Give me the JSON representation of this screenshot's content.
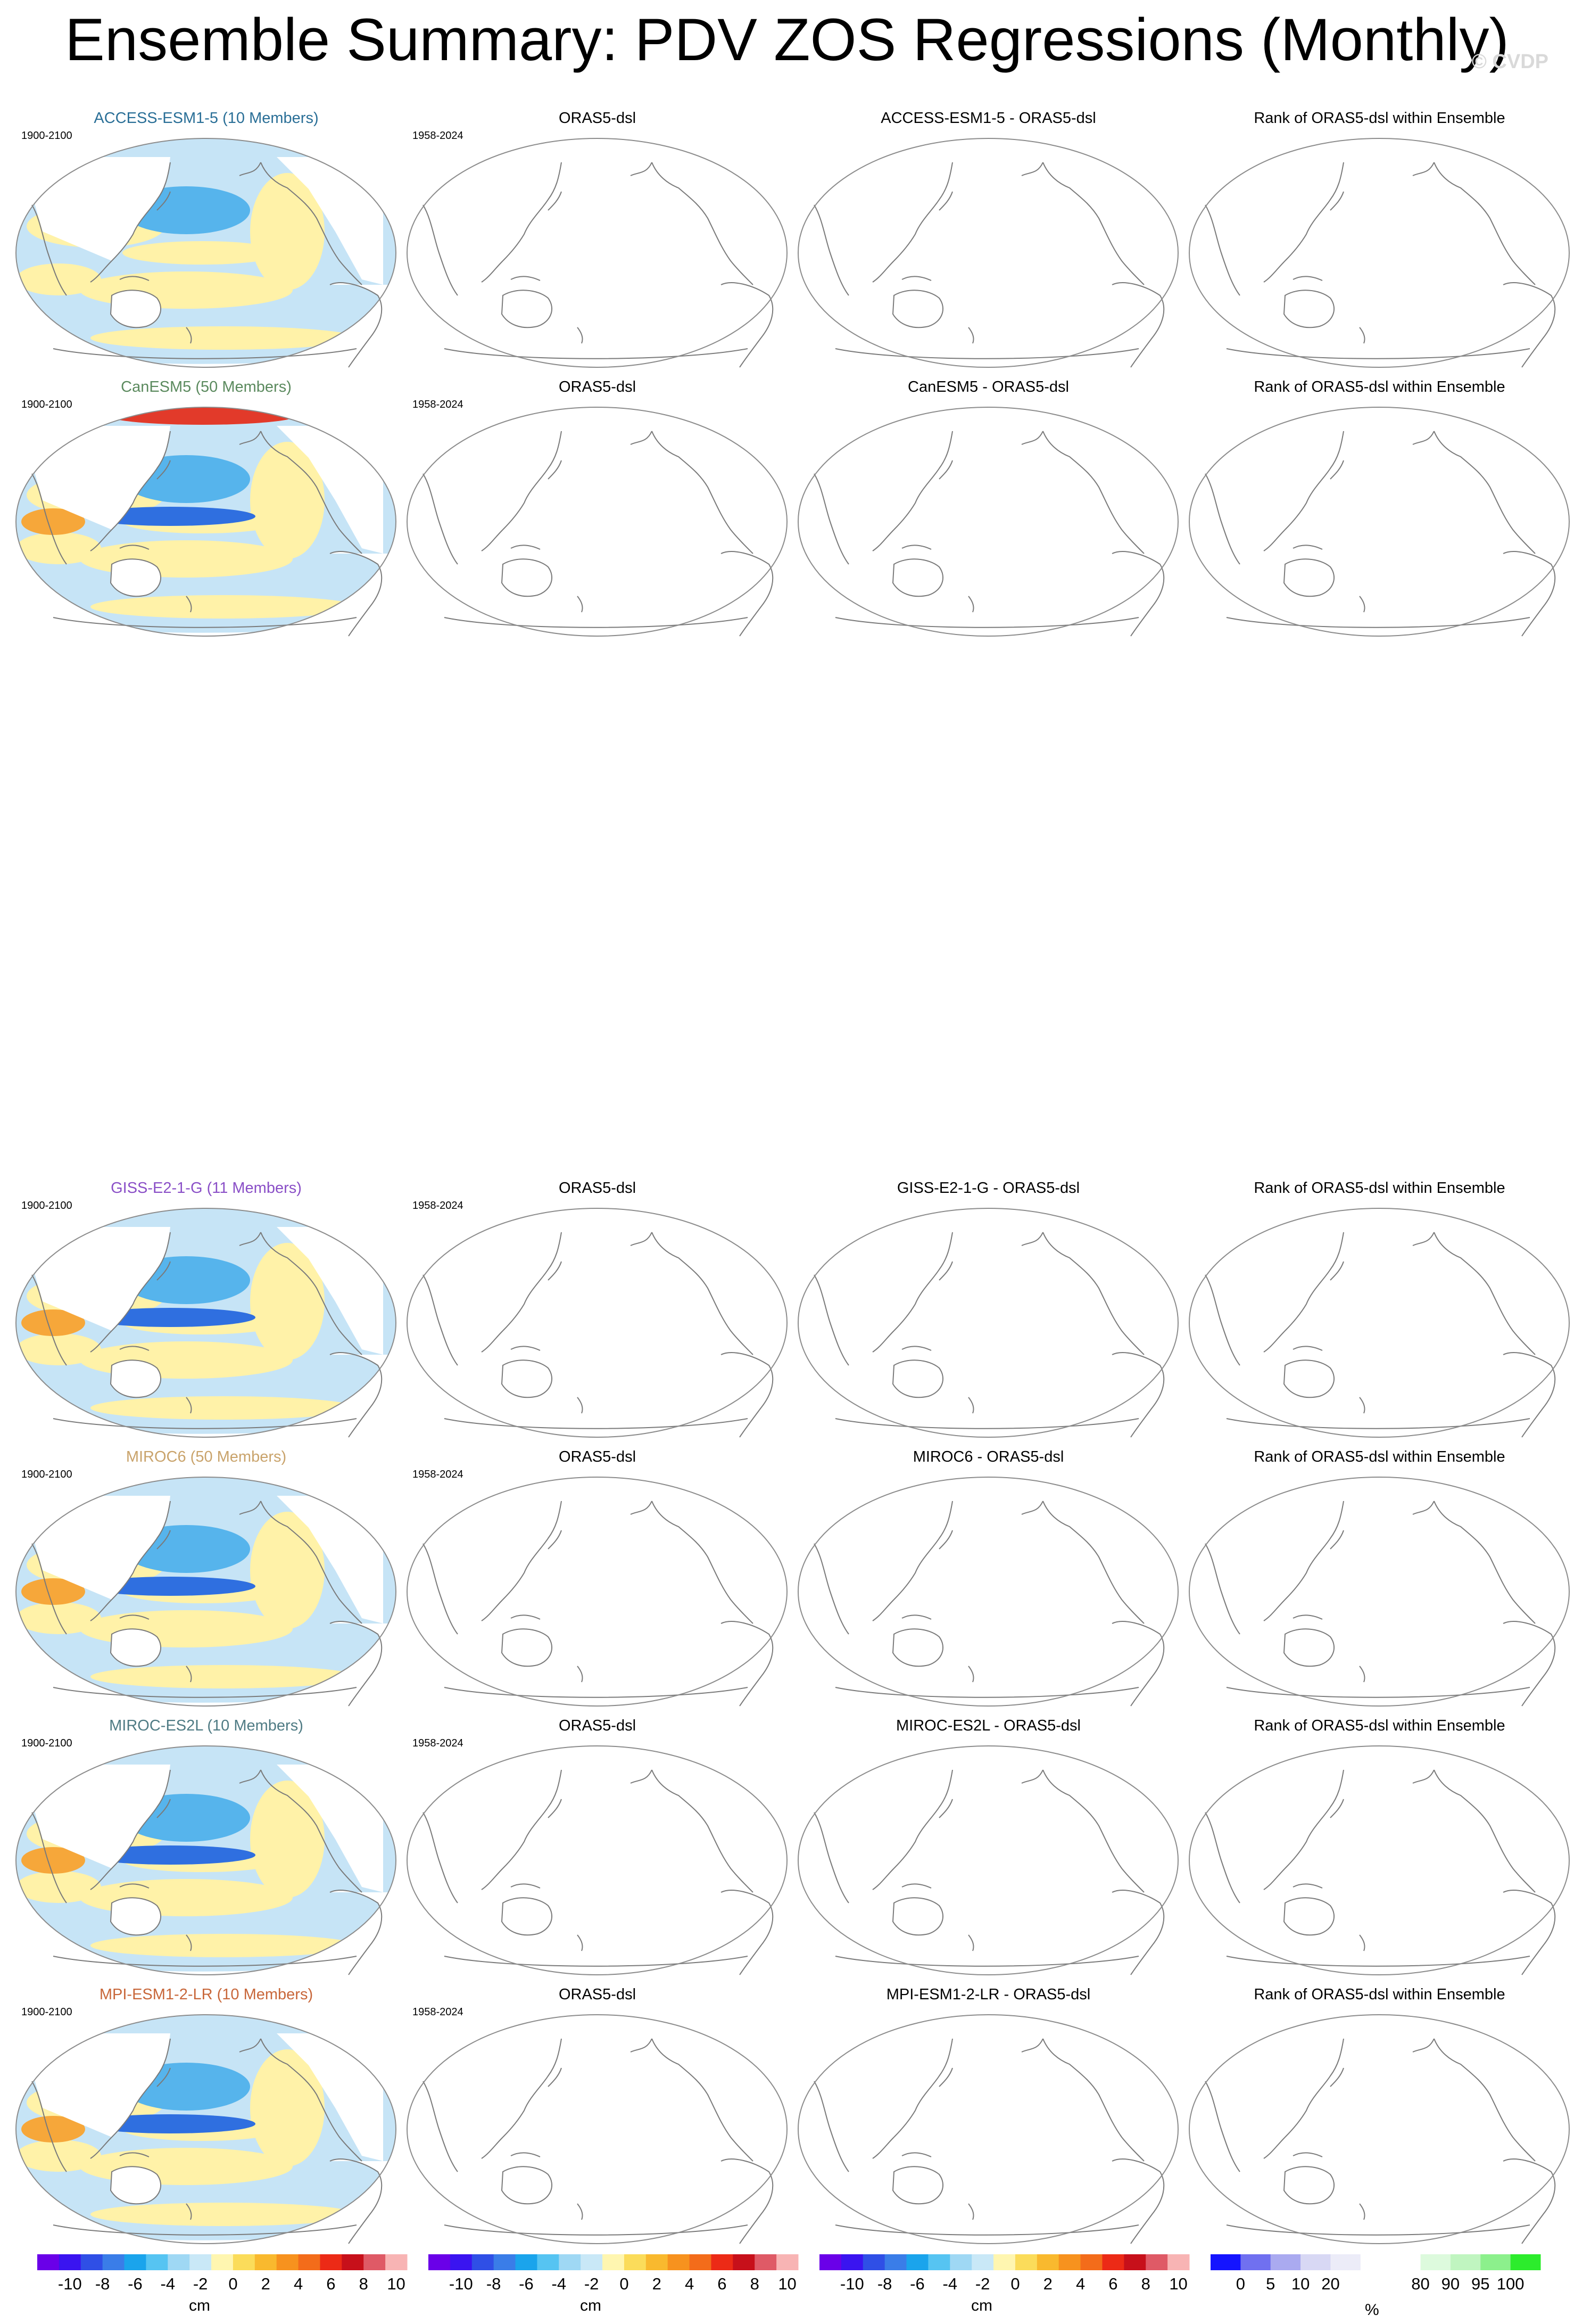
{
  "title": "Ensemble Summary: PDV ZOS Regressions (Monthly)",
  "watermark": "© CVDP",
  "rows": [
    {
      "model": "ACCESS-ESM1-5 (10 Members)",
      "model_color": "#2a6f97",
      "model_period": "1900-2100",
      "obs_title": "ORAS5-dsl",
      "obs_period": "1958-2024",
      "diff_title": "ACCESS-ESM1-5 - ORAS5-dsl",
      "rank_title": "Rank of ORAS5-dsl within Ensemble"
    },
    {
      "model": "CanESM5 (50 Members)",
      "model_color": "#5b8a5e",
      "model_period": "1900-2100",
      "obs_title": "ORAS5-dsl",
      "obs_period": "1958-2024",
      "diff_title": "CanESM5 - ORAS5-dsl",
      "rank_title": "Rank of ORAS5-dsl within Ensemble"
    },
    {
      "model": "GISS-E2-1-G (11 Members)",
      "model_color": "#8a4fc7",
      "model_period": "1900-2100",
      "obs_title": "ORAS5-dsl",
      "obs_period": "1958-2024",
      "diff_title": "GISS-E2-1-G - ORAS5-dsl",
      "rank_title": "Rank of ORAS5-dsl within Ensemble"
    },
    {
      "model": "MIROC6 (50 Members)",
      "model_color": "#c9a36b",
      "model_period": "1900-2100",
      "obs_title": "ORAS5-dsl",
      "obs_period": "1958-2024",
      "diff_title": "MIROC6 - ORAS5-dsl",
      "rank_title": "Rank of ORAS5-dsl within Ensemble"
    },
    {
      "model": "MIROC-ES2L (10 Members)",
      "model_color": "#4f7b84",
      "model_period": "1900-2100",
      "obs_title": "ORAS5-dsl",
      "obs_period": "1958-2024",
      "diff_title": "MIROC-ES2L - ORAS5-dsl",
      "rank_title": "Rank of ORAS5-dsl within Ensemble"
    },
    {
      "model": "MPI-ESM1-2-LR (10 Members)",
      "model_color": "#c8673a",
      "model_period": "1900-2100",
      "obs_title": "ORAS5-dsl",
      "obs_period": "1958-2024",
      "diff_title": "MPI-ESM1-2-LR - ORAS5-dsl",
      "rank_title": "Rank of ORAS5-dsl within Ensemble"
    }
  ],
  "colorbars": {
    "cm": {
      "unit": "cm",
      "colors": [
        "#6a00e8",
        "#3a14f0",
        "#2f4fe6",
        "#3a7de8",
        "#1aa4ec",
        "#56c4f2",
        "#9fd8f4",
        "#c9e8f7",
        "#fff6b0",
        "#fbdc5a",
        "#f9b92e",
        "#f7921e",
        "#f36c1a",
        "#ec2a16",
        "#c7101a",
        "#df5a66",
        "#f8b4b4"
      ],
      "ticks": [
        "-10",
        "-8",
        "-6",
        "-4",
        "-2",
        "0",
        "2",
        "4",
        "6",
        "8",
        "10"
      ]
    },
    "pct": {
      "unit": "%",
      "colors": [
        "#1414ff",
        "#7070f0",
        "#aaaaf0",
        "#d8d8f4",
        "#ececf8",
        "#ffffff",
        "#ffffff",
        "#ddfadd",
        "#c0f5c0",
        "#8cf08c",
        "#2cec2c"
      ],
      "ticks": [
        "0",
        "5",
        "10",
        "20",
        "80",
        "90",
        "95",
        "100"
      ]
    }
  }
}
